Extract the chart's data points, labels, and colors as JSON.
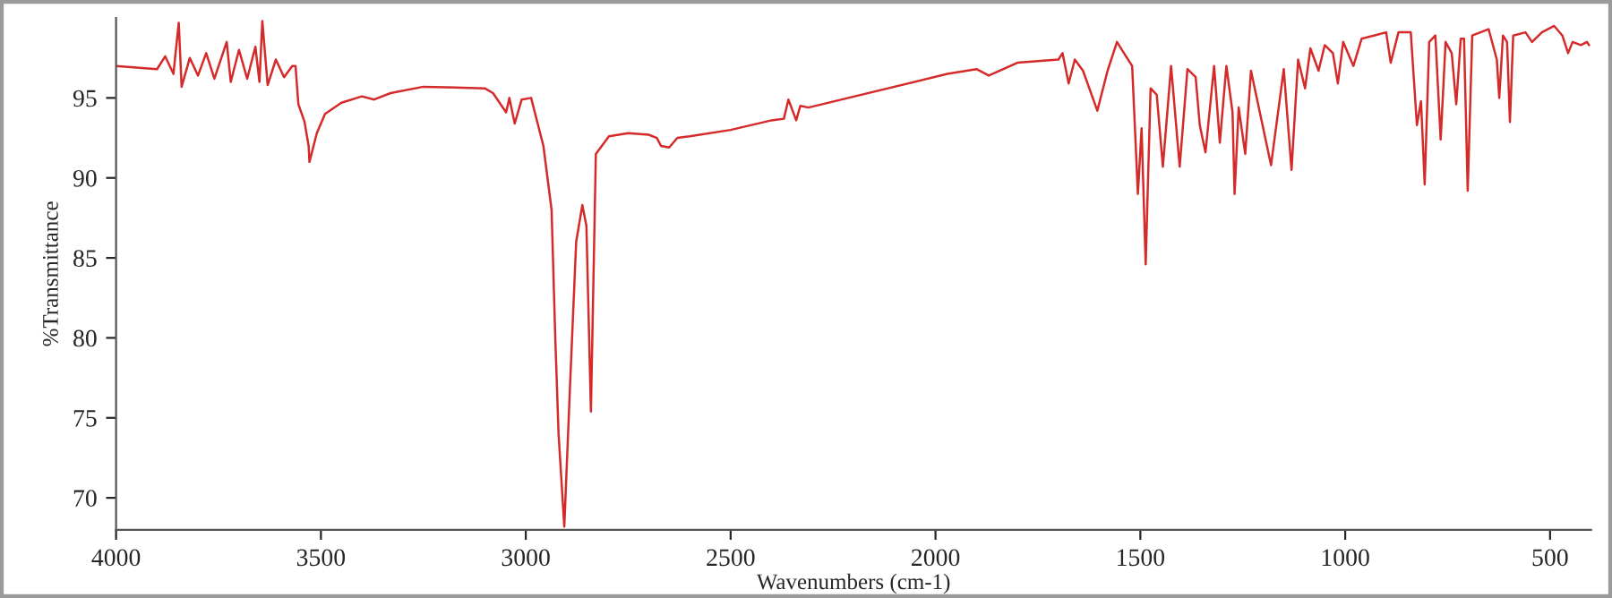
{
  "chart_data": {
    "type": "line",
    "xlabel": "Wavenumbers (cm-1)",
    "ylabel": "%Transmittance",
    "xlim": [
      4000,
      400
    ],
    "xticks": [
      4000,
      3500,
      3000,
      2500,
      2000,
      1500,
      1000,
      500
    ],
    "ylim": [
      68,
      100
    ],
    "yticks": [
      70,
      75,
      80,
      85,
      90,
      95
    ],
    "grid": false,
    "legend": false,
    "marker": "none",
    "line_style": "solid",
    "series": [
      {
        "color": "#d42a2a",
        "x": [
          4000,
          3950,
          3900,
          3880,
          3860,
          3847,
          3840,
          3820,
          3800,
          3780,
          3760,
          3730,
          3720,
          3700,
          3680,
          3660,
          3650,
          3643,
          3630,
          3610,
          3590,
          3570,
          3562,
          3555,
          3540,
          3530,
          3528,
          3510,
          3490,
          3450,
          3400,
          3370,
          3330,
          3250,
          3100,
          3080,
          3048,
          3040,
          3027,
          3010,
          2987,
          2957,
          2937,
          2928,
          2920,
          2906,
          2892,
          2877,
          2862,
          2852,
          2841,
          2829,
          2797,
          2750,
          2700,
          2680,
          2670,
          2650,
          2630,
          2600,
          2500,
          2400,
          2370,
          2359,
          2340,
          2330,
          2310,
          1971,
          1900,
          1870,
          1800,
          1700,
          1690,
          1675,
          1660,
          1640,
          1605,
          1580,
          1557,
          1540,
          1520,
          1506,
          1497,
          1487,
          1475,
          1460,
          1445,
          1425,
          1404,
          1385,
          1365,
          1355,
          1341,
          1320,
          1306,
          1290,
          1275,
          1270,
          1260,
          1244,
          1230,
          1181,
          1150,
          1131,
          1115,
          1098,
          1085,
          1065,
          1050,
          1030,
          1018,
          1005,
          980,
          960,
          930,
          900,
          889,
          870,
          840,
          825,
          815,
          806,
          795,
          780,
          767,
          755,
          740,
          729,
          718,
          710,
          701,
          690,
          650,
          630,
          624,
          615,
          605,
          598,
          590,
          560,
          544,
          520,
          490,
          470,
          456,
          445,
          425,
          410,
          405
        ],
        "values": [
          97.0,
          96.9,
          96.8,
          97.6,
          96.5,
          99.7,
          95.7,
          97.5,
          96.4,
          97.8,
          96.2,
          98.5,
          96.0,
          98.0,
          96.2,
          98.2,
          96.0,
          99.8,
          95.8,
          97.4,
          96.3,
          97.0,
          97.0,
          94.6,
          93.5,
          92.0,
          91.0,
          92.8,
          94.0,
          94.7,
          95.1,
          94.9,
          95.3,
          95.7,
          95.6,
          95.3,
          94.1,
          95.0,
          93.4,
          94.9,
          95.0,
          92.0,
          88.0,
          80.0,
          74.0,
          68.2,
          77.0,
          86.0,
          88.3,
          87.0,
          75.4,
          91.5,
          92.6,
          92.8,
          92.7,
          92.5,
          92.0,
          91.9,
          92.5,
          92.6,
          93.0,
          93.6,
          93.7,
          94.9,
          93.6,
          94.5,
          94.4,
          96.5,
          96.8,
          96.4,
          97.2,
          97.4,
          97.8,
          95.9,
          97.4,
          96.7,
          94.2,
          96.7,
          98.5,
          97.8,
          97.0,
          89.0,
          93.1,
          84.6,
          95.6,
          95.2,
          90.7,
          97.0,
          90.7,
          96.8,
          96.3,
          93.3,
          91.6,
          97.0,
          92.2,
          97.0,
          94.1,
          89.0,
          94.4,
          91.5,
          96.7,
          90.8,
          96.8,
          90.5,
          97.4,
          95.6,
          98.1,
          96.7,
          98.3,
          97.8,
          95.9,
          98.5,
          97.0,
          98.7,
          98.9,
          99.1,
          97.2,
          99.1,
          99.1,
          93.3,
          94.8,
          89.6,
          98.5,
          98.9,
          92.4,
          98.5,
          97.8,
          94.6,
          98.7,
          98.7,
          89.2,
          98.9,
          99.3,
          97.4,
          95.0,
          98.9,
          98.5,
          93.5,
          98.9,
          99.1,
          98.5,
          99.1,
          99.5,
          98.9,
          97.8,
          98.5,
          98.3,
          98.5,
          98.3
        ]
      }
    ]
  }
}
